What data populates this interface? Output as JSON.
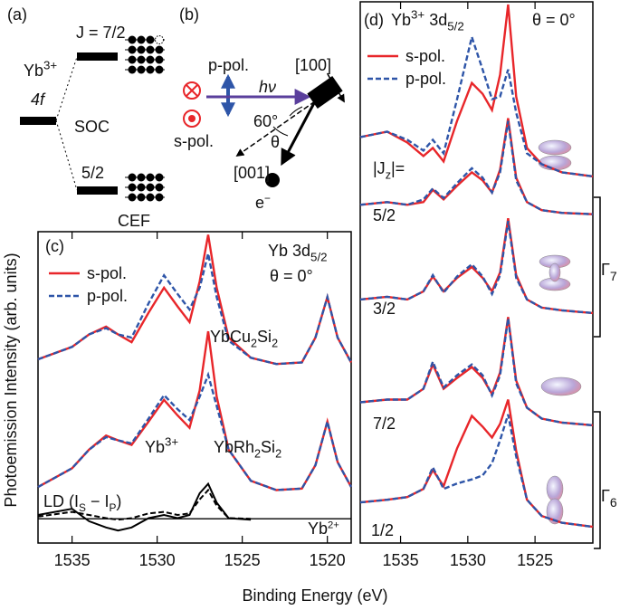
{
  "panel_a": {
    "label": "(a)",
    "j_upper": "J = 7/2",
    "ion": {
      "parts": [
        {
          "text": "Yb"
        },
        {
          "text": "3+",
          "shift": "sup"
        }
      ]
    },
    "level": "4f",
    "soc": "SOC",
    "j_lower": "5/2",
    "cef": "CEF"
  },
  "panel_b": {
    "label": "(b)",
    "p_pol": "p-pol.",
    "photon": "hν",
    "axis_100": "[100]",
    "s_pol": "s-pol.",
    "angle": "60°",
    "theta": "θ",
    "axis_001": "[001]",
    "electron": {
      "parts": [
        {
          "text": "e"
        },
        {
          "text": "−",
          "shift": "sup"
        }
      ]
    }
  },
  "y_axis_label": "Photoemission Intensity (arb. units)",
  "x_axis_label": "Binding Energy (eV)",
  "chart_data": [
    {
      "type": "line",
      "panel": "(c)",
      "title": {
        "parts": [
          {
            "text": "Yb 3d"
          },
          {
            "text": "5/2",
            "shift": "sub"
          }
        ]
      },
      "subtitle": "θ = 0°",
      "series": [
        {
          "name": "s-pol.",
          "color": "#e8262a",
          "dash": "solid"
        },
        {
          "name": "p-pol.",
          "color": "#2e55a8",
          "dash": "dashed"
        }
      ],
      "x": [
        1537,
        1535,
        1534,
        1533,
        1532.3,
        1531.5,
        1530.5,
        1529.6,
        1528.8,
        1528.1,
        1527.5,
        1527.0,
        1526.5,
        1525.8,
        1524.5,
        1523,
        1521.5,
        1520.7,
        1520.0,
        1519.4,
        1518.6
      ],
      "spectra": [
        {
          "label": {
            "parts": [
              {
                "text": "YbCu"
              },
              {
                "text": "2",
                "shift": "sub"
              },
              {
                "text": "Si"
              },
              {
                "text": "2",
                "shift": "sub"
              }
            ]
          },
          "values": [
            [
              5.9,
              6.3,
              6.7,
              6.95,
              6.7,
              6.45,
              7.4,
              8.2,
              7.6,
              7.1,
              8.4,
              9.9,
              8.2,
              6.6,
              5.95,
              5.75,
              5.8,
              6.6,
              7.9,
              6.6,
              5.8
            ],
            [
              5.9,
              6.3,
              6.7,
              6.9,
              6.7,
              6.6,
              7.7,
              8.6,
              8.0,
              7.5,
              8.2,
              9.3,
              7.9,
              6.5,
              5.95,
              5.75,
              5.8,
              6.6,
              7.9,
              6.6,
              5.8
            ]
          ]
        },
        {
          "label": {
            "parts": [
              {
                "text": "YbRh"
              },
              {
                "text": "2",
                "shift": "sub"
              },
              {
                "text": "Si"
              },
              {
                "text": "2",
                "shift": "sub"
              }
            ]
          },
          "values": [
            [
              1.8,
              2.4,
              3.0,
              3.45,
              3.3,
              3.15,
              3.9,
              4.6,
              4.1,
              3.7,
              4.9,
              6.8,
              4.7,
              3.0,
              2.0,
              1.7,
              1.75,
              2.5,
              3.9,
              2.6,
              1.8
            ],
            [
              1.8,
              2.4,
              3.0,
              3.4,
              3.3,
              3.2,
              4.0,
              4.75,
              4.3,
              3.95,
              4.7,
              5.4,
              4.4,
              3.0,
              2.0,
              1.7,
              1.75,
              2.5,
              3.9,
              2.6,
              1.8
            ]
          ]
        }
      ],
      "ld": {
        "label": {
          "parts": [
            {
              "text": "LD (I"
            },
            {
              "text": "S",
              "shift": "sub"
            },
            {
              "text": " − I"
            },
            {
              "text": "P",
              "shift": "sub"
            },
            {
              "text": ")"
            }
          ]
        },
        "color": "#000000",
        "dash": [
          "solid",
          "dashed"
        ],
        "baseline": 0.78,
        "values": [
          [
            0.9,
            1.1,
            0.7,
            0.5,
            0.4,
            0.5,
            0.8,
            0.9,
            0.8,
            0.9,
            1.6,
            1.9,
            1.3,
            0.8,
            0.75,
            null,
            null,
            null,
            null,
            null,
            null
          ],
          [
            0.85,
            1.0,
            0.9,
            0.8,
            0.75,
            0.8,
            0.95,
            1.0,
            0.9,
            0.95,
            1.4,
            1.7,
            1.2,
            0.8,
            0.78,
            null,
            null,
            null,
            null,
            null,
            null
          ]
        ]
      },
      "annotations": [
        {
          "parts": [
            {
              "text": "Yb"
            },
            {
              "text": "3+",
              "shift": "sup"
            }
          ]
        },
        {
          "parts": [
            {
              "text": "Yb"
            },
            {
              "text": "2+",
              "shift": "sup"
            }
          ]
        }
      ],
      "xlim": [
        1537,
        1518.6
      ],
      "ylim": [
        0,
        10
      ],
      "xticks": [
        1535,
        1530,
        1525,
        1520
      ]
    },
    {
      "type": "line",
      "panel": "(d)",
      "title": {
        "parts": [
          {
            "text": "Yb"
          },
          {
            "text": "3+",
            "shift": "sup"
          },
          {
            "text": " 3d"
          },
          {
            "text": "5/2",
            "shift": "sub"
          }
        ]
      },
      "subtitle": "θ = 0°",
      "series": [
        {
          "name": "s-pol.",
          "color": "#e8262a",
          "dash": "solid"
        },
        {
          "name": "p-pol.",
          "color": "#2e55a8",
          "dash": "dashed"
        }
      ],
      "x": [
        1538,
        1536,
        1534.5,
        1533.3,
        1532.6,
        1531.8,
        1530.8,
        1529.7,
        1528.9,
        1528.2,
        1527.6,
        1527.0,
        1526.4,
        1525.6,
        1524.5,
        1523,
        1520.7
      ],
      "spectra": [
        {
          "values": [
            [
              15.0,
              15.2,
              14.8,
              14.3,
              14.6,
              14.1,
              15.6,
              17.0,
              16.6,
              16.0,
              17.3,
              19.9,
              16.5,
              14.6,
              14.0,
              13.7,
              13.55
            ],
            [
              15.0,
              15.2,
              14.9,
              14.5,
              14.9,
              14.4,
              16.4,
              18.7,
              17.5,
              16.4,
              16.5,
              17.5,
              15.9,
              14.4,
              14.0,
              13.7,
              13.55
            ]
          ]
        },
        {
          "label": "5/2",
          "values": [
            [
              12.5,
              12.6,
              12.5,
              12.6,
              13.05,
              12.7,
              13.2,
              13.7,
              13.4,
              12.95,
              13.8,
              15.7,
              13.5,
              12.6,
              12.3,
              12.2,
              12.15
            ],
            [
              12.5,
              12.6,
              12.5,
              12.7,
              13.1,
              12.75,
              13.3,
              13.85,
              13.5,
              12.95,
              13.7,
              15.6,
              13.4,
              12.6,
              12.3,
              12.2,
              12.15
            ]
          ]
        },
        {
          "label": "3/2",
          "values": [
            [
              9.0,
              9.1,
              9.0,
              9.3,
              9.85,
              9.3,
              9.8,
              10.2,
              9.8,
              9.3,
              10.0,
              12.0,
              9.9,
              9.0,
              8.7,
              8.6,
              8.5
            ],
            [
              9.0,
              9.1,
              9.0,
              9.3,
              9.9,
              9.25,
              9.85,
              10.3,
              9.85,
              9.2,
              9.9,
              11.9,
              9.8,
              9.0,
              8.7,
              8.6,
              8.5
            ]
          ]
        },
        {
          "label": "7/2",
          "values": [
            [
              5.2,
              5.3,
              5.3,
              5.7,
              6.6,
              5.7,
              6.1,
              6.5,
              6.1,
              5.5,
              6.3,
              8.35,
              6.0,
              5.0,
              4.6,
              4.45,
              4.35
            ],
            [
              5.2,
              5.3,
              5.3,
              5.7,
              6.7,
              5.75,
              6.2,
              6.6,
              6.2,
              5.45,
              6.2,
              8.3,
              5.9,
              5.0,
              4.6,
              4.45,
              4.35
            ]
          ]
        },
        {
          "label": "1/2",
          "values": [
            [
              1.5,
              1.6,
              1.7,
              2.0,
              2.7,
              2.1,
              3.5,
              4.7,
              4.3,
              3.9,
              4.4,
              5.3,
              3.4,
              1.6,
              1.0,
              0.75,
              0.6
            ],
            [
              1.5,
              1.6,
              1.7,
              2.0,
              2.8,
              2.0,
              2.2,
              2.35,
              2.5,
              2.95,
              3.8,
              4.75,
              3.2,
              1.6,
              1.0,
              0.75,
              0.6
            ]
          ]
        }
      ],
      "jz_label": {
        "parts": [
          {
            "text": "|J"
          },
          {
            "text": "z",
            "shift": "sub"
          },
          {
            "text": "|="
          }
        ]
      },
      "groups": [
        {
          "label": {
            "parts": [
              {
                "text": "Γ"
              },
              {
                "text": "7",
                "shift": "sub"
              }
            ]
          }
        },
        {
          "label": {
            "parts": [
              {
                "text": "Γ"
              },
              {
                "text": "6",
                "shift": "sub"
              }
            ]
          }
        }
      ],
      "xlim": [
        1538,
        1520.7
      ],
      "ylim": [
        0,
        20
      ],
      "xticks": [
        1535,
        1530,
        1525
      ]
    }
  ]
}
